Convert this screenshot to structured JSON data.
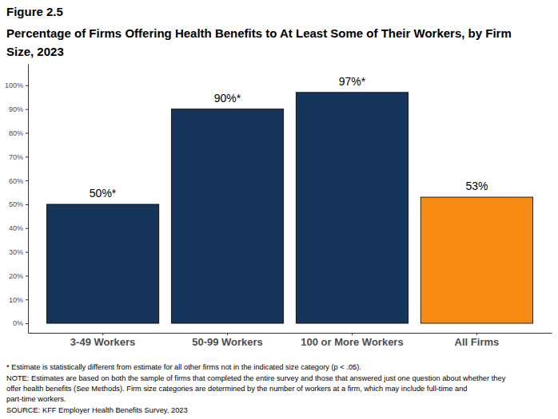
{
  "chart_data": {
    "type": "bar",
    "title": "Figure 2.5",
    "subtitle": "Percentage of Firms Offering Health Benefits to At Least Some of Their Workers, by Firm Size, 2023",
    "categories": [
      "3-49 Workers",
      "50-99 Workers",
      "100 or More Workers",
      "All Firms"
    ],
    "values": [
      50,
      90,
      97,
      53
    ],
    "value_labels": [
      "50%*",
      "90%*",
      "97%*",
      "53%"
    ],
    "colors": [
      "#15355a",
      "#15355a",
      "#15355a",
      "#f68a12"
    ],
    "data_labels": true,
    "grid": false,
    "ylim": [
      -4,
      109
    ],
    "yticks": [
      {
        "value": 0,
        "label": "0%"
      },
      {
        "value": 10,
        "label": "10%"
      },
      {
        "value": 20,
        "label": "20%"
      },
      {
        "value": 30,
        "label": "30%"
      },
      {
        "value": 40,
        "label": "40%"
      },
      {
        "value": 50,
        "label": "50%"
      },
      {
        "value": 60,
        "label": "60%"
      },
      {
        "value": 70,
        "label": "70%"
      },
      {
        "value": 80,
        "label": "80%"
      },
      {
        "value": 90,
        "label": "90%"
      },
      {
        "value": 100,
        "label": "100%"
      }
    ],
    "annotations": [
      "* Estimate is statistically different from estimate for all other firms not in the indicated size category (p < .05).",
      "NOTE: Estimates are based on both the sample of firms that completed the entire survey and those that answered just one question about whether they",
      "offer health benefits (See Methods). Firm size categories are determined by the number of workers at a firm, which may include full-time and",
      "part-time workers.",
      "SOURCE: KFF Employer Health Benefits Survey, 2023"
    ]
  }
}
